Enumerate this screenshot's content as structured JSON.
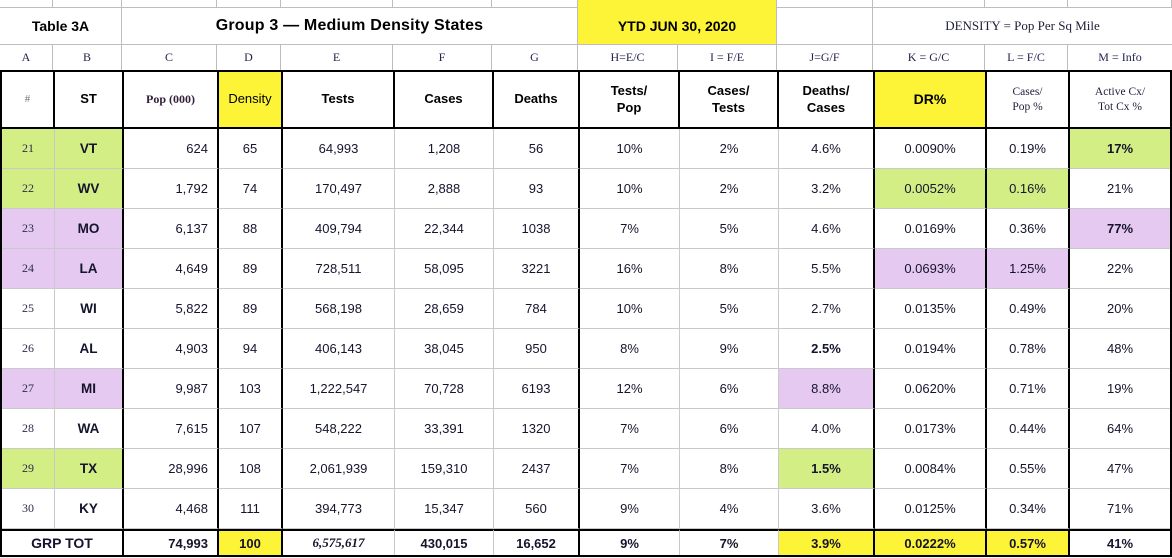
{
  "colors": {
    "highlightyellow": "#fdf438",
    "highlightgreen": "#d3ee85",
    "highlightpurple": "#e6c9f1"
  },
  "title_row": {
    "table_label": "Table 3A",
    "group_title": "Group 3 — Medium Density States",
    "ytd_label": "YTD JUN 30, 2020",
    "density_note": "DENSITY = Pop Per Sq Mile"
  },
  "column_letters": [
    "A",
    "B",
    "C",
    "D",
    "E",
    "F",
    "G",
    "H=E/C",
    "I = F/E",
    "J=G/F",
    "K = G/C",
    "L = F/C",
    "M = Info"
  ],
  "column_headers": [
    "#",
    "ST",
    "Pop (000)",
    "Density",
    "Tests",
    "Cases",
    "Deaths",
    "Tests/\nPop",
    "Cases/\nTests",
    "Deaths/\nCases",
    "DR%",
    "Cases/\nPop %",
    "Active Cx/\nTot Cx %"
  ],
  "rows": [
    {
      "num": "21",
      "st": "VT",
      "row_hl": "green",
      "cells": [
        "624",
        "65",
        "64,993",
        "1,208",
        "56",
        "10%",
        "2%",
        "4.6%",
        "0.0090%",
        "0.19%",
        "17%"
      ],
      "cell_hl": {
        "10": "green"
      },
      "bold": [
        10
      ]
    },
    {
      "num": "22",
      "st": "WV",
      "row_hl": "green",
      "cells": [
        "1,792",
        "74",
        "170,497",
        "2,888",
        "93",
        "10%",
        "2%",
        "3.2%",
        "0.0052%",
        "0.16%",
        "21%"
      ],
      "cell_hl": {
        "8": "green",
        "9": "green"
      }
    },
    {
      "num": "23",
      "st": "MO",
      "row_hl": "purple",
      "cells": [
        "6,137",
        "88",
        "409,794",
        "22,344",
        "1038",
        "7%",
        "5%",
        "4.6%",
        "0.0169%",
        "0.36%",
        "77%"
      ],
      "cell_hl": {
        "10": "purple"
      },
      "bold": [
        10
      ]
    },
    {
      "num": "24",
      "st": "LA",
      "row_hl": "purple",
      "cells": [
        "4,649",
        "89",
        "728,511",
        "58,095",
        "3221",
        "16%",
        "8%",
        "5.5%",
        "0.0693%",
        "1.25%",
        "22%"
      ],
      "cell_hl": {
        "8": "purple",
        "9": "purple"
      }
    },
    {
      "num": "25",
      "st": "WI",
      "cells": [
        "5,822",
        "89",
        "568,198",
        "28,659",
        "784",
        "10%",
        "5%",
        "2.7%",
        "0.0135%",
        "0.49%",
        "20%"
      ]
    },
    {
      "num": "26",
      "st": "AL",
      "cells": [
        "4,903",
        "94",
        "406,143",
        "38,045",
        "950",
        "8%",
        "9%",
        "2.5%",
        "0.0194%",
        "0.78%",
        "48%"
      ],
      "bold": [
        7
      ]
    },
    {
      "num": "27",
      "st": "MI",
      "row_hl": "purple",
      "cells": [
        "9,987",
        "103",
        "1,222,547",
        "70,728",
        "6193",
        "12%",
        "6%",
        "8.8%",
        "0.0620%",
        "0.71%",
        "19%"
      ],
      "cell_hl": {
        "7": "purple"
      }
    },
    {
      "num": "28",
      "st": "WA",
      "cells": [
        "7,615",
        "107",
        "548,222",
        "33,391",
        "1320",
        "7%",
        "6%",
        "4.0%",
        "0.0173%",
        "0.44%",
        "64%"
      ]
    },
    {
      "num": "29",
      "st": "TX",
      "row_hl": "green",
      "cells": [
        "28,996",
        "108",
        "2,061,939",
        "159,310",
        "2437",
        "7%",
        "8%",
        "1.5%",
        "0.0084%",
        "0.55%",
        "47%"
      ],
      "cell_hl": {
        "7": "green"
      },
      "bold": [
        7
      ]
    },
    {
      "num": "30",
      "st": "KY",
      "cells": [
        "4,468",
        "111",
        "394,773",
        "15,347",
        "560",
        "9%",
        "4%",
        "3.6%",
        "0.0125%",
        "0.34%",
        "71%"
      ]
    }
  ],
  "total": {
    "label": "GRP TOT",
    "cells": [
      "74,993",
      "100",
      "6,575,617",
      "430,015",
      "16,652",
      "9%",
      "7%",
      "3.9%",
      "0.0222%",
      "0.57%",
      "41%"
    ],
    "cell_hl": {
      "1": "yellow",
      "7": "yellow",
      "8": "yellow",
      "9": "yellow"
    }
  }
}
